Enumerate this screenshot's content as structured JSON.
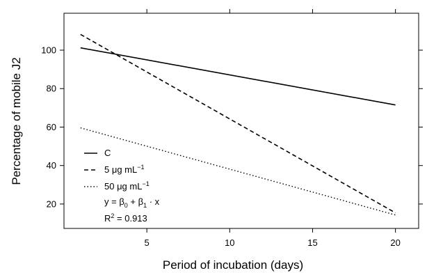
{
  "chart_data": {
    "type": "line",
    "title": "",
    "xlabel": "Period of incubation (days)",
    "ylabel": "Percentage of mobile J2",
    "xlim": [
      0,
      21.4
    ],
    "ylim": [
      7.3,
      119.2
    ],
    "xticks": [
      5,
      10,
      15,
      20
    ],
    "yticks": [
      20,
      40,
      60,
      80,
      100
    ],
    "xtick_labels": [
      "5",
      "10",
      "15",
      "20"
    ],
    "ytick_labels": [
      "20",
      "40",
      "60",
      "80",
      "100"
    ],
    "grid": false,
    "legend_position": "bottom-left",
    "series": [
      {
        "name": "C",
        "style": "solid",
        "x": [
          1,
          20
        ],
        "y": [
          101.2,
          71.5
        ]
      },
      {
        "name": "5 μg mL−1",
        "style": "dashed",
        "x": [
          1,
          20
        ],
        "y": [
          108.2,
          15.4
        ]
      },
      {
        "name": "50 μg mL−1",
        "style": "dotted",
        "x": [
          1,
          20
        ],
        "y": [
          59.6,
          14.3
        ]
      }
    ],
    "legend": {
      "items": [
        {
          "style": "solid",
          "label": "C"
        },
        {
          "style": "dashed",
          "label_prefix": "5 μg mL",
          "label_sup": "−1"
        },
        {
          "style": "dotted",
          "label_prefix": "50 μg mL",
          "label_sup": "−1"
        }
      ],
      "model": "y = β0 + β1 · x",
      "model_parts": {
        "lhs": "y = β",
        "sub0": "0",
        "mid": " + β",
        "sub1": "1",
        "rhs": " · x"
      },
      "r2": {
        "label": "R",
        "sup": "2",
        "value_text": " = 0.913"
      }
    }
  }
}
